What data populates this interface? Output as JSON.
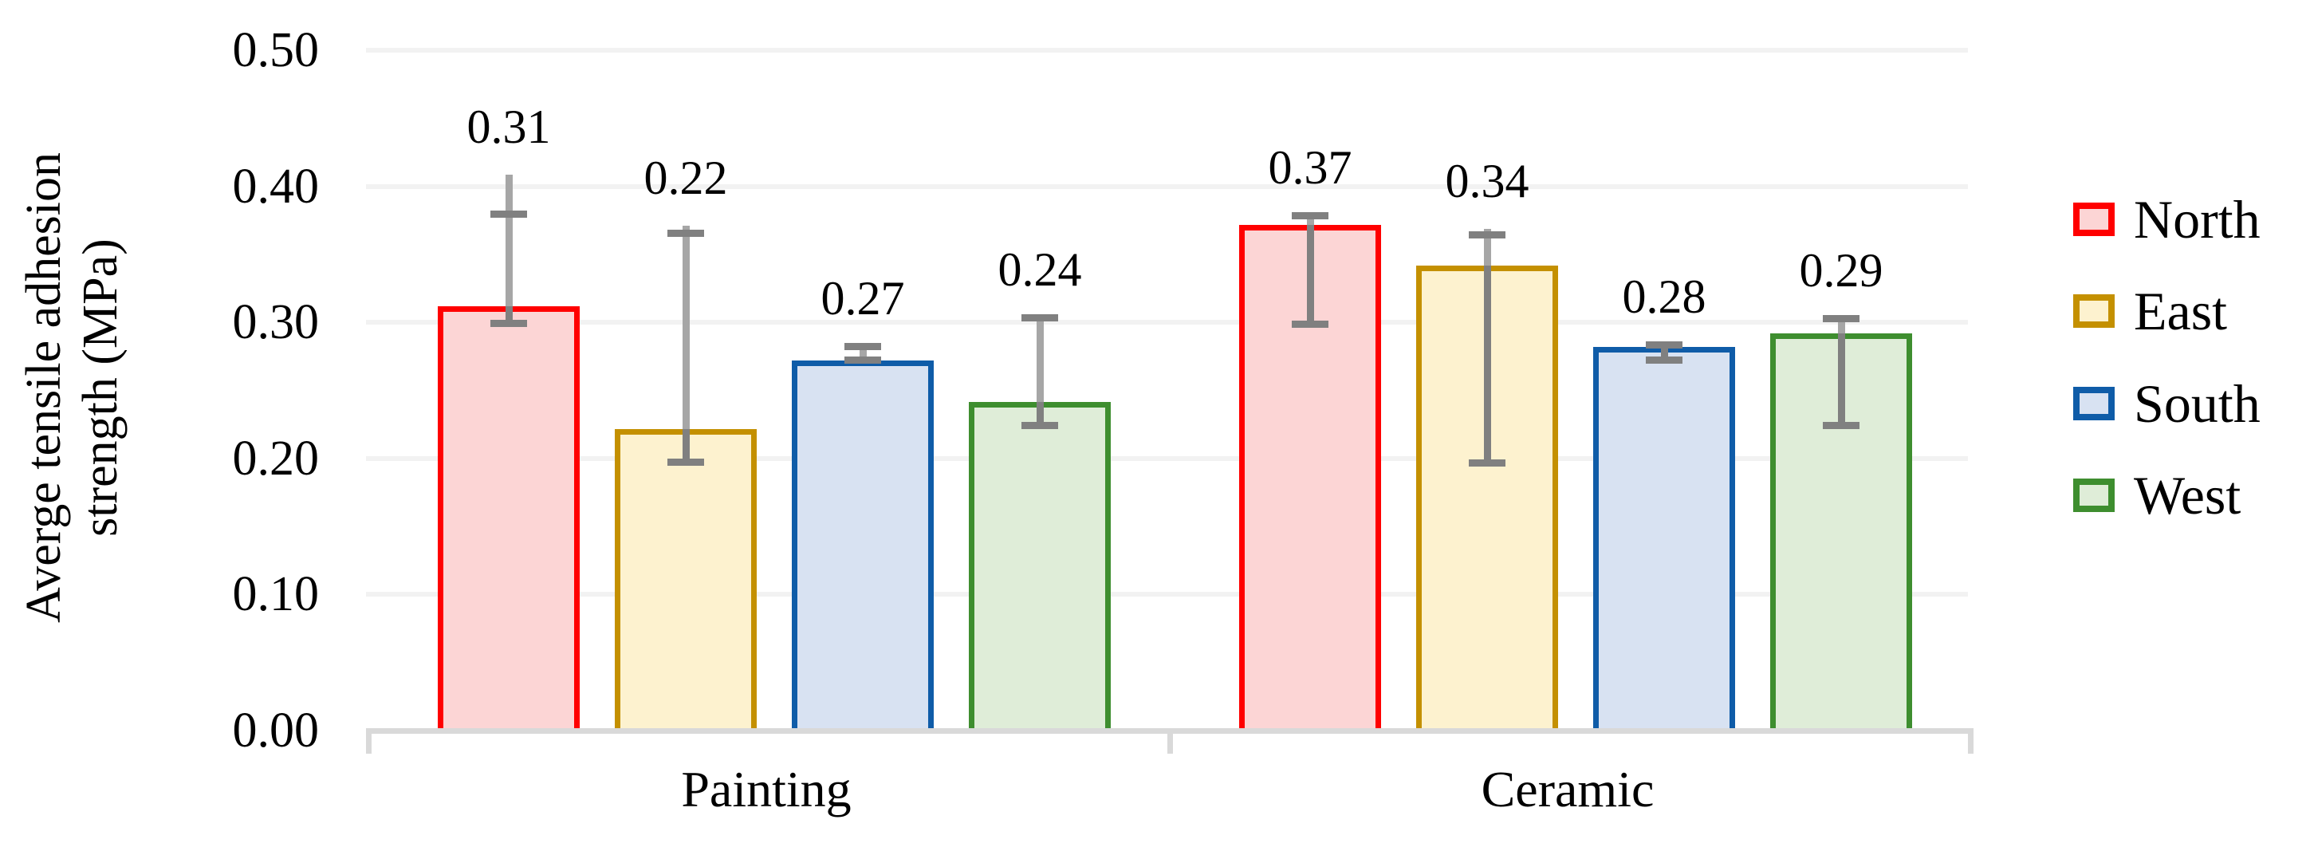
{
  "chart_data": {
    "type": "bar",
    "title": "",
    "ylabel_lines": [
      "Averge tensile adhesion",
      "strength (MPa)"
    ],
    "ylabel": "Averge tensile adhesion strength (MPa)",
    "xlabel": "",
    "categories": [
      "Painting",
      "Ceramic"
    ],
    "y_axis": {
      "min": 0.0,
      "max": 0.5,
      "step": 0.1,
      "tick_labels": [
        "0.00",
        "0.10",
        "0.20",
        "0.30",
        "0.40",
        "0.50"
      ]
    },
    "grid": true,
    "legend_position": "right",
    "series": [
      {
        "name": "North",
        "border_color": "#FF0000",
        "fill_color": "#FCD5D5",
        "points": [
          {
            "category": "Painting",
            "value": 0.31,
            "label": "0.31",
            "err_cap_top": 0.378,
            "err_cap_bottom": 0.298,
            "err_line_top": 0.407
          },
          {
            "category": "Ceramic",
            "value": 0.37,
            "label": "0.37",
            "err_cap_top": 0.377,
            "err_cap_bottom": 0.297,
            "err_line_top": 0.377
          }
        ]
      },
      {
        "name": "East",
        "border_color": "#C49000",
        "fill_color": "#FDF2CF",
        "points": [
          {
            "category": "Painting",
            "value": 0.22,
            "label": "0.22",
            "err_cap_top": 0.364,
            "err_cap_bottom": 0.196,
            "err_line_top": 0.369
          },
          {
            "category": "Ceramic",
            "value": 0.34,
            "label": "0.34",
            "err_cap_top": 0.363,
            "err_cap_bottom": 0.195,
            "err_line_top": 0.367
          }
        ]
      },
      {
        "name": "South",
        "border_color": "#0F5CA8",
        "fill_color": "#D8E2F2",
        "points": [
          {
            "category": "Painting",
            "value": 0.27,
            "label": "0.27",
            "err_cap_top": 0.281,
            "err_cap_bottom": 0.271,
            "err_line_top": 0.281
          },
          {
            "category": "Ceramic",
            "value": 0.28,
            "label": "0.28",
            "err_cap_top": 0.282,
            "err_cap_bottom": 0.271,
            "err_line_top": 0.282
          }
        ]
      },
      {
        "name": "West",
        "border_color": "#3E8E2F",
        "fill_color": "#DFEDD8",
        "points": [
          {
            "category": "Painting",
            "value": 0.24,
            "label": "0.24",
            "err_cap_top": 0.302,
            "err_cap_bottom": 0.223,
            "err_line_top": 0.302
          },
          {
            "category": "Ceramic",
            "value": 0.29,
            "label": "0.29",
            "err_cap_top": 0.301,
            "err_cap_bottom": 0.223,
            "err_line_top": 0.301
          }
        ]
      }
    ],
    "error_bar_colors": {
      "line": "#A6A6A6",
      "cap": "#808080"
    },
    "axis_colors": {
      "axis_line": "#D9D9D9",
      "gridline": "#F2F2F2",
      "tick": "#D9D9D9",
      "text": "#000000"
    }
  }
}
